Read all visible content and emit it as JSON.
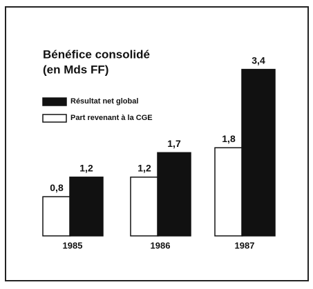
{
  "chart_data": {
    "type": "bar",
    "title": "Bénéfice consolidé",
    "subtitle": "(en Mds FF)",
    "categories": [
      "1985",
      "1986",
      "1987"
    ],
    "series": [
      {
        "name": "Résultat net global",
        "color": "#111111",
        "values": [
          1.2,
          1.7,
          3.4
        ],
        "value_labels": [
          "1,2",
          "1,7",
          "3,4"
        ]
      },
      {
        "name": "Part revenant à la CGE",
        "color": "#ffffff",
        "values": [
          0.8,
          1.2,
          1.8
        ],
        "value_labels": [
          "0,8",
          "1,2",
          "1,8"
        ]
      }
    ]
  }
}
